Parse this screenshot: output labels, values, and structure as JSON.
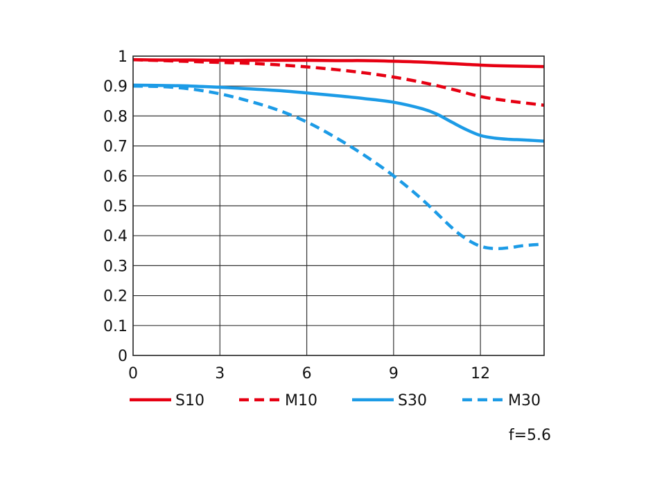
{
  "chart_data": {
    "type": "line",
    "title": "",
    "xlabel": "",
    "ylabel": "",
    "xlim": [
      0,
      14.2
    ],
    "ylim": [
      0,
      1
    ],
    "grid": true,
    "legend_position": "bottom",
    "x_ticks": [
      0,
      3,
      6,
      9,
      12
    ],
    "x_tick_labels": [
      "0",
      "3",
      "6",
      "9",
      "12"
    ],
    "y_ticks": [
      0,
      0.1,
      0.2,
      0.3,
      0.4,
      0.5,
      0.6,
      0.7,
      0.8,
      0.9,
      1
    ],
    "y_tick_labels": [
      "0",
      "0.1",
      "0.2",
      "0.3",
      "0.4",
      "0.5",
      "0.6",
      "0.7",
      "0.8",
      "0.9",
      "1"
    ],
    "annotation": "f=5.6",
    "series": [
      {
        "name": "S10",
        "color": "#e60012",
        "style": "solid",
        "x": [
          0,
          1,
          2,
          3,
          4,
          5,
          6,
          7,
          8,
          9,
          10,
          11,
          12,
          13,
          14.2
        ],
        "y": [
          0.988,
          0.987,
          0.987,
          0.986,
          0.986,
          0.986,
          0.986,
          0.985,
          0.985,
          0.983,
          0.98,
          0.975,
          0.97,
          0.967,
          0.965
        ]
      },
      {
        "name": "M10",
        "color": "#e60012",
        "style": "dashed",
        "x": [
          0,
          1,
          2,
          3,
          4,
          5,
          6,
          7,
          8,
          9,
          10,
          11,
          12,
          13,
          14.2
        ],
        "y": [
          0.988,
          0.985,
          0.982,
          0.979,
          0.976,
          0.971,
          0.964,
          0.955,
          0.944,
          0.93,
          0.912,
          0.89,
          0.865,
          0.85,
          0.836
        ]
      },
      {
        "name": "S30",
        "color": "#1c9be6",
        "style": "solid",
        "x": [
          0,
          1,
          2,
          3,
          4,
          5,
          6,
          7,
          8,
          9,
          10,
          10.5,
          11,
          11.5,
          12,
          12.5,
          13,
          13.5,
          14.2
        ],
        "y": [
          0.903,
          0.902,
          0.9,
          0.896,
          0.891,
          0.885,
          0.877,
          0.868,
          0.858,
          0.846,
          0.824,
          0.806,
          0.78,
          0.755,
          0.735,
          0.726,
          0.722,
          0.72,
          0.716
        ]
      },
      {
        "name": "M30",
        "color": "#1c9be6",
        "style": "dashed",
        "x": [
          0,
          1,
          2,
          3,
          4,
          5,
          6,
          7,
          8,
          9,
          10,
          11,
          11.5,
          12,
          12.5,
          13,
          13.5,
          14.2
        ],
        "y": [
          0.9,
          0.898,
          0.89,
          0.874,
          0.85,
          0.82,
          0.78,
          0.728,
          0.668,
          0.6,
          0.52,
          0.428,
          0.39,
          0.365,
          0.357,
          0.36,
          0.367,
          0.372
        ]
      }
    ]
  }
}
